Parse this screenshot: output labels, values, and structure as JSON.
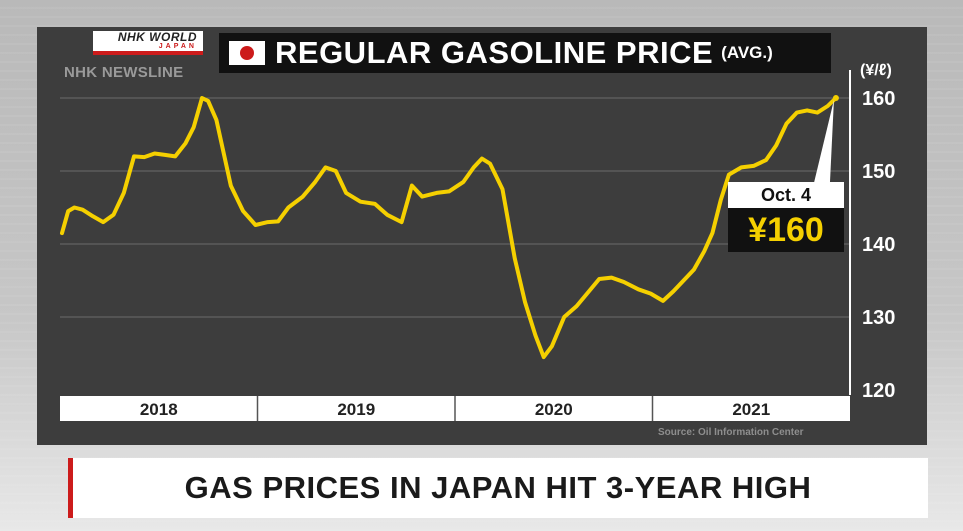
{
  "broadcaster": {
    "brand": "NHK WORLD",
    "brand_sub": "JAPAN",
    "program": "NHK NEWSLINE"
  },
  "colors": {
    "line": "#f5d000",
    "panel": "#3d3d3d",
    "accent_red": "#cc1b1b"
  },
  "icons": {
    "flag": "japan-flag-icon"
  },
  "chart_data": {
    "type": "line",
    "title": "REGULAR GASOLINE PRICE",
    "subtitle": "(AVG.)",
    "unit_label": "(¥/ℓ)",
    "xlabel": "",
    "ylabel": "",
    "x_range": [
      2018.0,
      2021.77
    ],
    "ylim": [
      120,
      163
    ],
    "yticks": [
      120,
      130,
      140,
      150,
      160
    ],
    "grid": true,
    "legend": "none",
    "x_categories": [
      "2018",
      "2019",
      "2020",
      "2021"
    ],
    "series": [
      {
        "values": [
          [
            2018.0,
            141.5
          ],
          [
            2018.03,
            144.5
          ],
          [
            2018.06,
            145.0
          ],
          [
            2018.1,
            144.7
          ],
          [
            2018.15,
            143.8
          ],
          [
            2018.2,
            143.0
          ],
          [
            2018.25,
            144.0
          ],
          [
            2018.3,
            147.0
          ],
          [
            2018.35,
            152.0
          ],
          [
            2018.4,
            151.9
          ],
          [
            2018.45,
            152.4
          ],
          [
            2018.5,
            152.2
          ],
          [
            2018.55,
            152.0
          ],
          [
            2018.6,
            153.8
          ],
          [
            2018.64,
            156.0
          ],
          [
            2018.68,
            160.0
          ],
          [
            2018.71,
            159.6
          ],
          [
            2018.75,
            157.0
          ],
          [
            2018.82,
            148.0
          ],
          [
            2018.88,
            144.5
          ],
          [
            2018.94,
            142.6
          ],
          [
            2019.0,
            143.0
          ],
          [
            2019.05,
            143.1
          ],
          [
            2019.1,
            145.0
          ],
          [
            2019.17,
            146.5
          ],
          [
            2019.23,
            148.5
          ],
          [
            2019.28,
            150.5
          ],
          [
            2019.33,
            150.0
          ],
          [
            2019.38,
            147.0
          ],
          [
            2019.45,
            145.8
          ],
          [
            2019.52,
            145.5
          ],
          [
            2019.58,
            144.0
          ],
          [
            2019.65,
            143.0
          ],
          [
            2019.7,
            148.0
          ],
          [
            2019.75,
            146.5
          ],
          [
            2019.82,
            147.0
          ],
          [
            2019.88,
            147.2
          ],
          [
            2019.95,
            148.5
          ],
          [
            2020.0,
            150.5
          ],
          [
            2020.04,
            151.7
          ],
          [
            2020.08,
            151.0
          ],
          [
            2020.14,
            147.5
          ],
          [
            2020.2,
            138.0
          ],
          [
            2020.25,
            132.0
          ],
          [
            2020.3,
            127.5
          ],
          [
            2020.34,
            124.5
          ],
          [
            2020.38,
            126.0
          ],
          [
            2020.44,
            130.0
          ],
          [
            2020.5,
            131.5
          ],
          [
            2020.56,
            133.5
          ],
          [
            2020.61,
            135.2
          ],
          [
            2020.67,
            135.4
          ],
          [
            2020.73,
            134.8
          ],
          [
            2020.8,
            133.8
          ],
          [
            2020.86,
            133.2
          ],
          [
            2020.92,
            132.2
          ],
          [
            2020.97,
            133.5
          ],
          [
            2021.02,
            135.0
          ],
          [
            2021.07,
            136.5
          ],
          [
            2021.12,
            139.0
          ],
          [
            2021.16,
            141.5
          ],
          [
            2021.2,
            146.0
          ],
          [
            2021.24,
            149.5
          ],
          [
            2021.3,
            150.5
          ],
          [
            2021.36,
            150.7
          ],
          [
            2021.42,
            151.5
          ],
          [
            2021.47,
            153.5
          ],
          [
            2021.52,
            156.5
          ],
          [
            2021.57,
            158.0
          ],
          [
            2021.62,
            158.3
          ],
          [
            2021.67,
            158.0
          ],
          [
            2021.72,
            158.9
          ],
          [
            2021.76,
            160.0
          ]
        ]
      }
    ],
    "annotation": {
      "date": "Oct. 4",
      "value_label": "¥160",
      "value": 160
    },
    "source": "Source: Oil Information Center"
  },
  "headline": "GAS PRICES IN JAPAN HIT 3-YEAR HIGH"
}
